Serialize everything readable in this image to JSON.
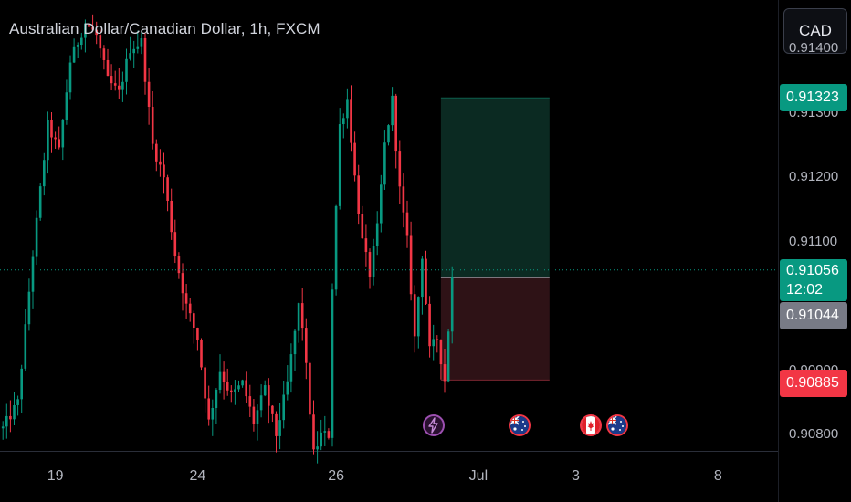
{
  "header": {
    "title": "Australian Dollar/Canadian Dollar, 1h, FXCM",
    "currency_button": "CAD"
  },
  "price_scale": {
    "ticks": [
      {
        "label": "0.91400",
        "value": 0.914
      },
      {
        "label": "0.91300",
        "value": 0.913
      },
      {
        "label": "0.91200",
        "value": 0.912
      },
      {
        "label": "0.91100",
        "value": 0.911
      },
      {
        "label": "0.90900",
        "value": 0.909
      },
      {
        "label": "0.90800",
        "value": 0.908
      }
    ],
    "tags": {
      "take_profit": {
        "label": "0.91323",
        "value": 0.91323,
        "color": "#089981"
      },
      "last_price": {
        "label": "0.91056",
        "value": 0.91056,
        "color": "#089981",
        "countdown": "12:02"
      },
      "entry": {
        "label": "0.91044",
        "value": 0.91044,
        "color": "#787b86"
      },
      "stop_loss": {
        "label": "0.90885",
        "value": 0.90885,
        "color": "#f23645"
      }
    }
  },
  "time_scale": {
    "ticks": [
      {
        "label": "19",
        "index": 14
      },
      {
        "label": "24",
        "index": 52
      },
      {
        "label": "26",
        "index": 89
      },
      {
        "label": "Jul",
        "index": 127
      },
      {
        "label": "3",
        "index": 153
      },
      {
        "label": "8",
        "index": 191
      }
    ]
  },
  "events": [
    {
      "name": "flash",
      "index": 115,
      "icon": "lightning-icon"
    },
    {
      "name": "australia",
      "index": 138,
      "icon": "australia-flag-icon"
    },
    {
      "name": "canada",
      "index": 157,
      "icon": "canada-flag-icon"
    },
    {
      "name": "australia",
      "index": 164,
      "icon": "australia-flag-icon"
    }
  ],
  "colors": {
    "up": "#089981",
    "down": "#f23645",
    "profit_zone": "#0b2a22",
    "loss_zone": "#2e1216",
    "background": "#000000"
  },
  "chart_data": {
    "type": "candlestick",
    "title": "Australian Dollar/Canadian Dollar, 1h, FXCM",
    "symbol": "AUDCAD",
    "interval": "1h",
    "ylim": [
      0.90775,
      0.91475
    ],
    "close_path": [
      [
        0,
        0.9081
      ],
      [
        4,
        0.9085
      ],
      [
        8,
        0.9108
      ],
      [
        12,
        0.9128
      ],
      [
        15,
        0.9124
      ],
      [
        18,
        0.9138
      ],
      [
        22,
        0.9144
      ],
      [
        25,
        0.9142
      ],
      [
        28,
        0.9135
      ],
      [
        31,
        0.9133
      ],
      [
        34,
        0.914
      ],
      [
        37,
        0.9141
      ],
      [
        40,
        0.9125
      ],
      [
        43,
        0.912
      ],
      [
        46,
        0.9108
      ],
      [
        49,
        0.91
      ],
      [
        52,
        0.9095
      ],
      [
        55,
        0.9082
      ],
      [
        58,
        0.909
      ],
      [
        61,
        0.9086
      ],
      [
        64,
        0.9088
      ],
      [
        67,
        0.9082
      ],
      [
        70,
        0.9087
      ],
      [
        73,
        0.908
      ],
      [
        76,
        0.9088
      ],
      [
        79,
        0.91
      ],
      [
        80,
        0.9097
      ],
      [
        83,
        0.9077
      ],
      [
        85,
        0.908
      ],
      [
        87,
        0.908
      ],
      [
        88,
        0.9103
      ],
      [
        90,
        0.9128
      ],
      [
        92,
        0.9132
      ],
      [
        94,
        0.912
      ],
      [
        96,
        0.911
      ],
      [
        98,
        0.9105
      ],
      [
        100,
        0.9112
      ],
      [
        102,
        0.9125
      ],
      [
        104,
        0.9132
      ],
      [
        106,
        0.9118
      ],
      [
        108,
        0.911
      ],
      [
        110,
        0.9095
      ],
      [
        112,
        0.9108
      ],
      [
        114,
        0.9093
      ],
      [
        116,
        0.9095
      ],
      [
        118,
        0.90885
      ],
      [
        120,
        0.91044
      ]
    ],
    "trade": {
      "type": "long position",
      "entry": 0.91044,
      "take_profit": 0.91323,
      "stop_loss": 0.90885,
      "start_index": 117,
      "end_index": 146
    },
    "last_price": 0.91056,
    "countdown": "12:02"
  }
}
